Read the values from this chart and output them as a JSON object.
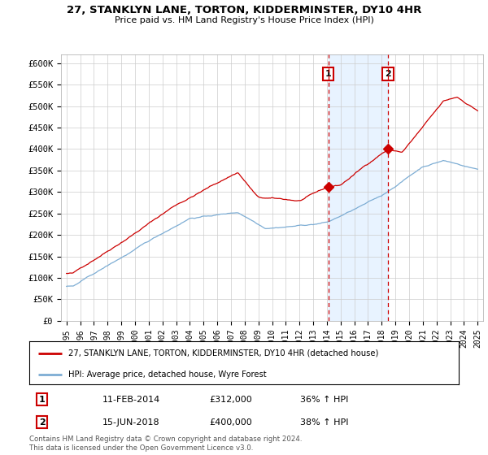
{
  "title": "27, STANKLYN LANE, TORTON, KIDDERMINSTER, DY10 4HR",
  "subtitle": "Price paid vs. HM Land Registry's House Price Index (HPI)",
  "ylim": [
    0,
    620000
  ],
  "yticks": [
    0,
    50000,
    100000,
    150000,
    200000,
    250000,
    300000,
    350000,
    400000,
    450000,
    500000,
    550000,
    600000
  ],
  "ytick_labels": [
    "£0",
    "£50K",
    "£100K",
    "£150K",
    "£200K",
    "£250K",
    "£300K",
    "£350K",
    "£400K",
    "£450K",
    "£500K",
    "£550K",
    "£600K"
  ],
  "red_color": "#cc0000",
  "blue_color": "#7dadd4",
  "marker1_date": 2014.1,
  "marker1_value": 312000,
  "marker2_date": 2018.45,
  "marker2_value": 400000,
  "legend_line1": "27, STANKLYN LANE, TORTON, KIDDERMINSTER, DY10 4HR (detached house)",
  "legend_line2": "HPI: Average price, detached house, Wyre Forest",
  "table_row1": [
    "1",
    "11-FEB-2014",
    "£312,000",
    "36% ↑ HPI"
  ],
  "table_row2": [
    "2",
    "15-JUN-2018",
    "£400,000",
    "38% ↑ HPI"
  ],
  "footnote": "Contains HM Land Registry data © Crown copyright and database right 2024.\nThis data is licensed under the Open Government Licence v3.0.",
  "background_color": "#ffffff",
  "grid_color": "#cccccc",
  "shade_color": "#ddeeff"
}
